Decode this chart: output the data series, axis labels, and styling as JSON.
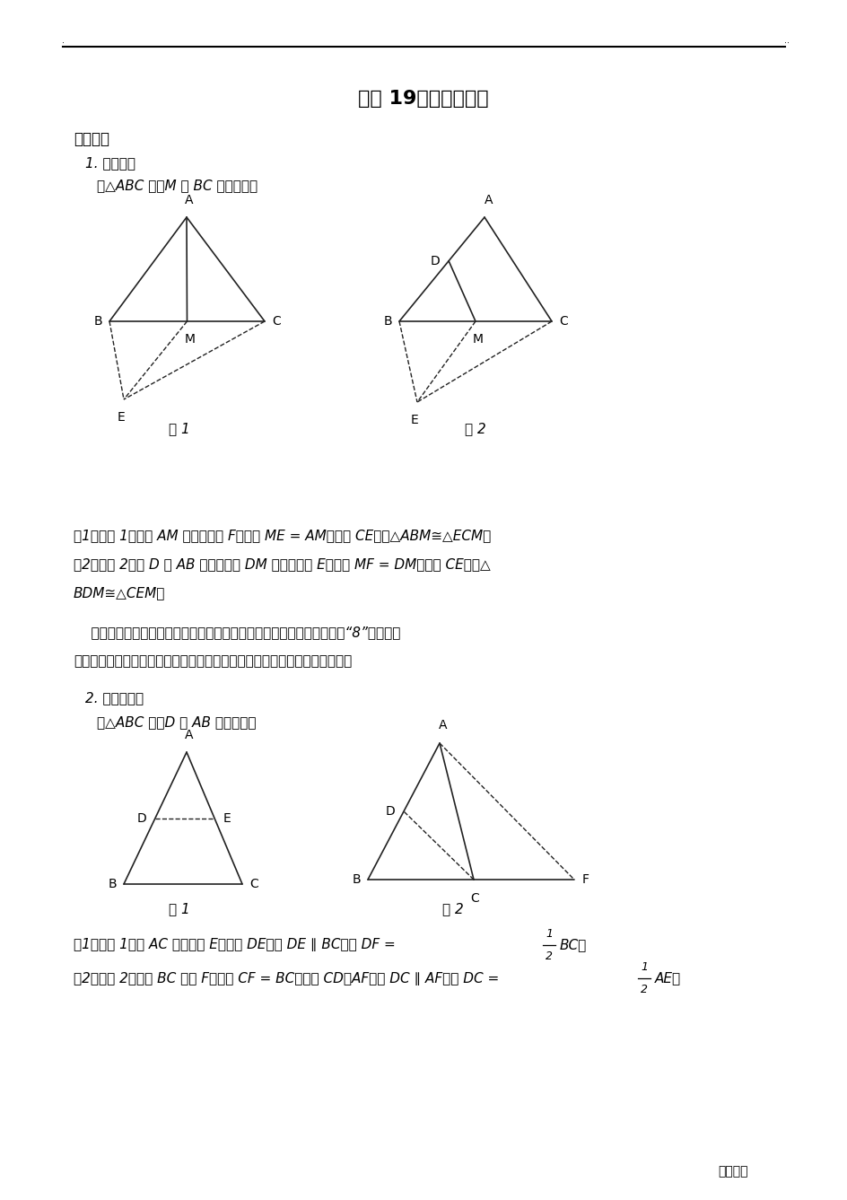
{
  "title": "专题 19《中点模型》",
  "title_fontsize": 16,
  "background_color": "#ffffff",
  "section1_header": "破解策略",
  "section1_sub1": "1. 倍长中线",
  "section1_sub1_desc": "在△ABC 中，M 为 BC 边的中点．",
  "fig1_label": "图 1",
  "fig2_label": "图 2",
  "fig3_label": "图 1",
  "fig4_label": "图 2",
  "section1_text1": "（1）如图 1，连结 AM 并延长至点 F，使得 ME = AM．连结 CE．则△ABM≅△ECM．",
  "section1_text2_line1": "（2）如图 2，点 D 在 AB 边上，连结 DM 并延长至点 E．使得 MF = DM．连结 CE，则△",
  "section1_text2_line2": "BDM≅△CEM，",
  "para_line1": "    遇到线段的中点问题，常借助倍长中线的方法还原中心对称图形，利用“8”字形全等",
  "para_line2": "将题中条件集中，达到解题的目的，这种方法是最常用的也是最重要的方法．",
  "section2_sub1": "2. 构造中位线",
  "section2_sub1_desc": "在△ABC 中，D 为 AB 边的中点，",
  "s2t1_pre": "（1）如图 1，取 AC 边的中点 E，连结 DE．则 DE ∥ BC，且 DF = ",
  "s2t1_post": "BC．",
  "s2t2_pre": "（2）如图 2，延长 BC 至点 F，使得 CF = BC．连结 CD，AF．则 DC ∥ AF，且 DC = ",
  "s2t2_post": "AE．",
  "footer": "考试文档"
}
